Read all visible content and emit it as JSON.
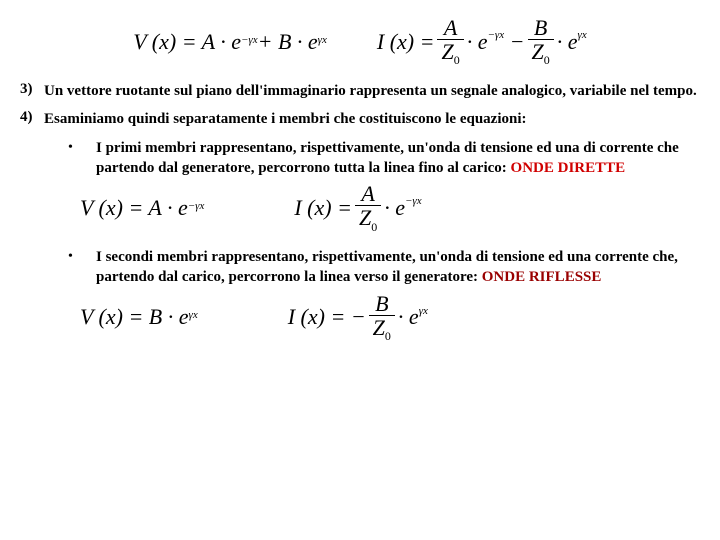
{
  "top_equations": {
    "v": "V (x) = A · e<sup>−γx</sup> + B · e<sup>γx</sup>",
    "i_lhs": "I (x) =",
    "i_t1_num": "A",
    "i_t1_den": "Z<sub>0</sub>",
    "i_mid": "· e<sup>−γx</sup> −",
    "i_t2_num": "B",
    "i_t2_den": "Z<sub>0</sub>",
    "i_rhs": "· e<sup>γx</sup>"
  },
  "item3": {
    "marker": "3)",
    "text": "Un vettore ruotante sul piano dell'immaginario rappresenta un segnale analogico, variabile nel tempo."
  },
  "item4": {
    "marker": "4)",
    "text": "Esaminiamo quindi separatamente i membri che costituiscono le equazioni:"
  },
  "bullet1": {
    "text": "I primi membri rappresentano, rispettivamente, un'onda di tensione ed una di corrente che partendo dal generatore, percorrono tutta la linea fino al carico: ",
    "label": "ONDE DIRETTE"
  },
  "dirette_eq": {
    "v": "V (x) = A · e<sup>−γx</sup>",
    "i_lhs": "I (x) =",
    "i_num": "A",
    "i_den": "Z<sub>0</sub>",
    "i_rhs": "· e<sup>−γx</sup>"
  },
  "bullet2": {
    "text": "I secondi membri rappresentano, rispettivamente, un'onda di tensione ed una corrente che, partendo dal carico, percorrono la linea verso il generatore: ",
    "label": "ONDE RIFLESSE"
  },
  "riflesse_eq": {
    "v": "V (x) = B · e<sup>γx</sup>",
    "i_lhs": "I (x) = −",
    "i_num": "B",
    "i_den": "Z<sub>0</sub>",
    "i_rhs": "· e<sup>γx</sup>"
  }
}
